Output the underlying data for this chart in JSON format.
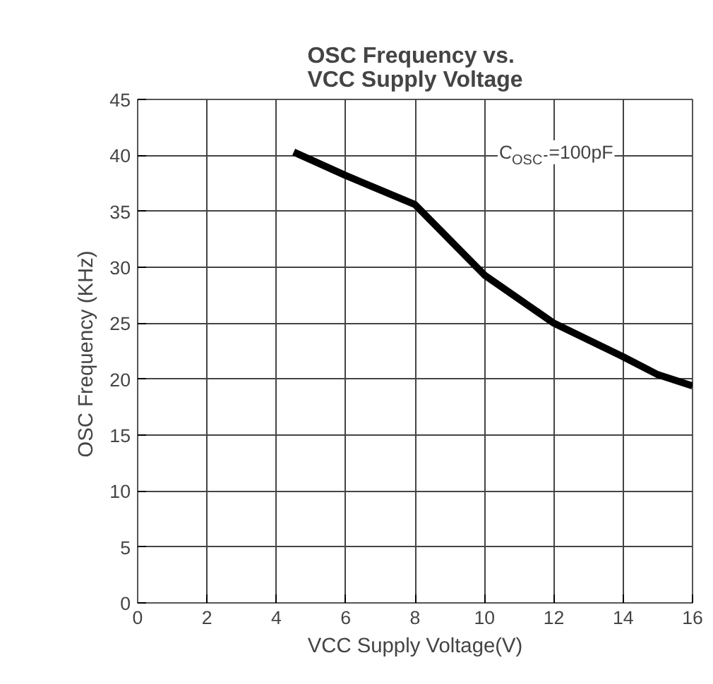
{
  "chart_data": {
    "type": "line",
    "title": "OSC Frequency vs.\nVCC Supply Voltage",
    "xlabel": "VCC Supply Voltage(V)",
    "ylabel": "OSC  Frequency (KHz)",
    "x": [
      4.5,
      6,
      8,
      10,
      12,
      14,
      15,
      16
    ],
    "series": [
      {
        "color": "#000000",
        "values": [
          40.3,
          38.2,
          35.6,
          29.3,
          25.0,
          22.0,
          20.4,
          19.4
        ]
      }
    ],
    "xlim": [
      0,
      16
    ],
    "ylim": [
      0,
      45
    ],
    "xticks": [
      0,
      2,
      4,
      6,
      8,
      10,
      12,
      14,
      16
    ],
    "yticks": [
      0,
      5,
      10,
      15,
      20,
      25,
      30,
      35,
      40,
      45
    ],
    "grid": true,
    "line_style": "solid",
    "annotations": [
      "C$_{OSC}$=100pF"
    ]
  }
}
